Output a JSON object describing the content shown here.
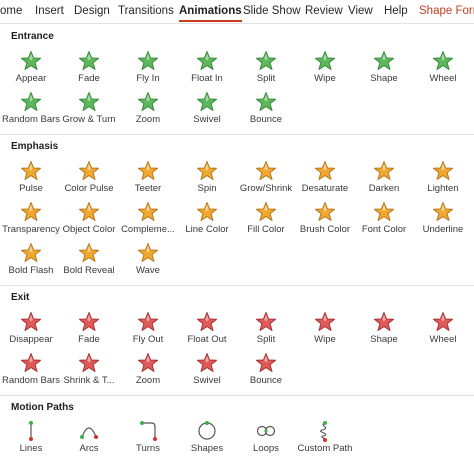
{
  "ribbon": {
    "tabs": [
      "ome",
      "Insert",
      "Design",
      "Transitions",
      "Animations",
      "Slide Show",
      "Review",
      "View",
      "Help",
      "Shape Forma"
    ],
    "active_tab": "Animations"
  },
  "sections": {
    "entrance": {
      "title": "Entrance",
      "items": [
        "Appear",
        "Fade",
        "Fly In",
        "Float In",
        "Split",
        "Wipe",
        "Shape",
        "Wheel",
        "Random Bars",
        "Grow & Turn",
        "Zoom",
        "Swivel",
        "Bounce"
      ]
    },
    "emphasis": {
      "title": "Emphasis",
      "items": [
        "Pulse",
        "Color Pulse",
        "Teeter",
        "Spin",
        "Grow/Shrink",
        "Desaturate",
        "Darken",
        "Lighten",
        "Transparency",
        "Object Color",
        "Compleme...",
        "Line Color",
        "Fill Color",
        "Brush Color",
        "Font Color",
        "Underline",
        "Bold Flash",
        "Bold Reveal",
        "Wave"
      ]
    },
    "exit": {
      "title": "Exit",
      "items": [
        "Disappear",
        "Fade",
        "Fly Out",
        "Float Out",
        "Split",
        "Wipe",
        "Shape",
        "Wheel",
        "Random Bars",
        "Shrink & T...",
        "Zoom",
        "Swivel",
        "Bounce"
      ]
    },
    "motion": {
      "title": "Motion Paths",
      "items": [
        "Lines",
        "Arcs",
        "Turns",
        "Shapes",
        "Loops",
        "Custom Path"
      ]
    }
  },
  "colors": {
    "entrance_star": "#5cb85c",
    "emphasis_star": "#f0a830",
    "exit_star": "#e05a5a",
    "accent": "#c43e1c"
  }
}
